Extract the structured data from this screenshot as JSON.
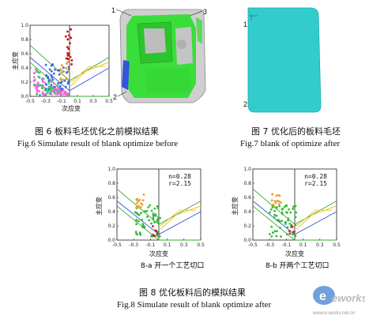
{
  "fig6": {
    "callouts": [
      "1",
      "2",
      "3"
    ],
    "caption_cn": "图 6  板料毛坯优化之前模拟结果",
    "caption_en": "Fig.6  Simulate result of blank optimize before",
    "chart_data": {
      "type": "scatter",
      "xlabel": "次应变",
      "ylabel": "主应变",
      "xlim": [
        -0.5,
        0.5
      ],
      "ylim": [
        0.0,
        1.0
      ],
      "xticks": [
        "-0.5",
        "-0.3",
        "-0.1",
        "0.1",
        "0.3",
        "0.5"
      ],
      "yticks": [
        "0.0",
        "0.2",
        "0.4",
        "0.6",
        "0.8",
        "1.0"
      ]
    }
  },
  "fig7": {
    "callouts": [
      "1",
      "2"
    ],
    "caption_cn": "图 7  优化后的板料毛坯",
    "caption_en": "Fig.7  blank of optimize after"
  },
  "fig8": {
    "caption_cn": "图 8  优化板料后的模拟结果",
    "caption_en": "Fig.8  Simulate result of blank optimize after",
    "panels": [
      {
        "n_label": "n=0.28",
        "r_label": "r=2.15",
        "sublabel": "8-a  开一个工艺切口",
        "chart_data": {
          "type": "scatter",
          "xlabel": "次应变",
          "ylabel": "主应变",
          "xlim": [
            -0.5,
            0.5
          ],
          "ylim": [
            0.0,
            1.0
          ],
          "xticks": [
            "-0.5",
            "-0.3",
            "-0.1",
            "0.1",
            "0.3",
            "0.5"
          ],
          "yticks": [
            "0.0",
            "0.2",
            "0.4",
            "0.6",
            "0.8",
            "1.0"
          ]
        }
      },
      {
        "n_label": "n=0.28",
        "r_label": "r=2.15",
        "sublabel": "8-b  开两个工艺切口",
        "chart_data": {
          "type": "scatter",
          "xlabel": "次应变",
          "ylabel": "主应变",
          "xlim": [
            -0.5,
            0.5
          ],
          "ylim": [
            0.0,
            1.0
          ],
          "xticks": [
            "-0.5",
            "-0.3",
            "-0.1",
            "0.1",
            "0.3",
            "0.5"
          ],
          "yticks": [
            "0.0",
            "0.2",
            "0.4",
            "0.6",
            "0.8",
            "1.0"
          ]
        }
      }
    ]
  },
  "watermark": {
    "logo_text": "eworks",
    "url": "www.e-works.net.cn"
  },
  "colors": {
    "flc_green": "#33aa33",
    "flc_blue": "#3355dd",
    "flc_yellow": "#e8c020",
    "blank_teal": "#33cccc",
    "part_green": "#33dd33",
    "part_gray": "#c8c8c8"
  }
}
